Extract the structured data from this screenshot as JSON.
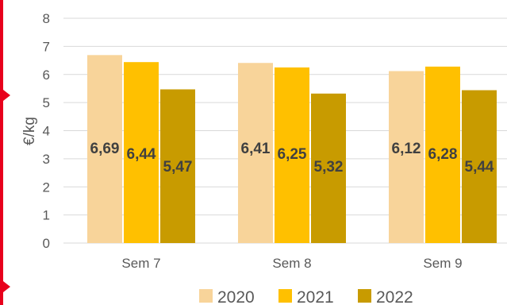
{
  "chart_data": {
    "type": "bar",
    "categories": [
      "Sem 7",
      "Sem 8",
      "Sem 9"
    ],
    "series": [
      {
        "name": "2020",
        "values": [
          6.69,
          6.41,
          6.12
        ],
        "labels": [
          "6,69",
          "6,41",
          "6,12"
        ],
        "color": "#F8D49A"
      },
      {
        "name": "2021",
        "values": [
          6.44,
          6.25,
          6.28
        ],
        "labels": [
          "6,44",
          "6,25",
          "6,28"
        ],
        "color": "#FFC000"
      },
      {
        "name": "2022",
        "values": [
          5.47,
          5.32,
          5.44
        ],
        "labels": [
          "5,47",
          "5,32",
          "5,44"
        ],
        "color": "#C89B00"
      }
    ],
    "ylabel": "€/kg",
    "ylim": [
      0,
      8
    ],
    "yticks": [
      "0",
      "1",
      "2",
      "3",
      "4",
      "5",
      "6",
      "7",
      "8"
    ],
    "grid": true,
    "legend": "bottom"
  },
  "frame_color": "#E8001C",
  "grid_color": "#D9D9D9"
}
